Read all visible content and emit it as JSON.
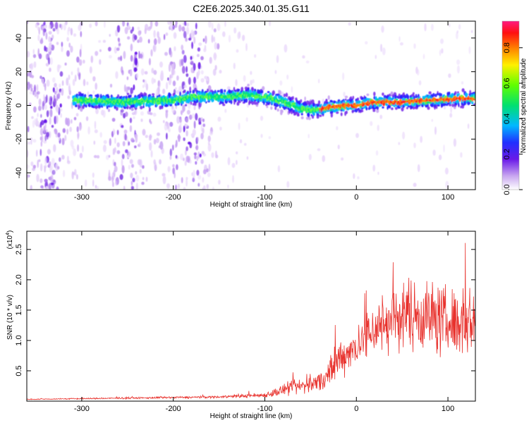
{
  "title": "C2E6.2025.340.01.35.G11",
  "chart_data": [
    {
      "type": "heatmap",
      "title": "C2E6.2025.340.01.35.G11",
      "xlabel": "Height of straight line (km)",
      "ylabel": "Frequency (Hz)",
      "xlim": [
        -360,
        130
      ],
      "ylim": [
        -50,
        50
      ],
      "xticks": [
        -300,
        -200,
        -100,
        0,
        100
      ],
      "yticks": [
        -40,
        -20,
        0,
        20,
        40
      ],
      "colorbar": {
        "label": "Normalized spectral amplitude",
        "range": [
          0.0,
          0.95
        ],
        "ticks": [
          "0.0",
          "0.2",
          "0.4",
          "0.6",
          "0.8"
        ],
        "tick_values": [
          0.0,
          0.2,
          0.4,
          0.6,
          0.8
        ]
      },
      "ridge": {
        "description": "dominant frequency band along height",
        "x": [
          -300,
          -260,
          -200,
          -180,
          -150,
          -120,
          -100,
          -80,
          -60,
          -45,
          -30,
          -10,
          0,
          20,
          50,
          80,
          110,
          130
        ],
        "y": [
          3,
          2,
          3,
          5,
          5,
          6,
          5,
          2,
          -2,
          -3,
          -1,
          0,
          0,
          2,
          2,
          3,
          4,
          4
        ]
      }
    },
    {
      "type": "line",
      "xlabel": "Height of straight line (km)",
      "ylabel": "SNR (10 * v/v)",
      "y_multiplier": "(x10",
      "y_multiplier_exp": "4",
      "y_multiplier_close": ")",
      "xlim": [
        -360,
        130
      ],
      "ylim": [
        0,
        2.8
      ],
      "xticks": [
        -300,
        -200,
        -100,
        0,
        100
      ],
      "yticks": [
        0.5,
        1.0,
        1.5,
        2.0,
        2.5
      ],
      "ytick_labels": [
        "0.5",
        "1.0",
        "1.5",
        "2.0",
        "2.5"
      ],
      "color": "#e8322d",
      "envelope": {
        "x": [
          -360,
          -250,
          -150,
          -100,
          -80,
          -60,
          -40,
          -25,
          -20,
          -10,
          0,
          10,
          20,
          40,
          60,
          80,
          100,
          130
        ],
        "mean": [
          0.03,
          0.05,
          0.07,
          0.1,
          0.18,
          0.25,
          0.32,
          0.5,
          0.7,
          0.8,
          0.9,
          1.05,
          1.2,
          1.35,
          1.45,
          1.4,
          1.3,
          1.3
        ],
        "amplitude": [
          0.01,
          0.02,
          0.03,
          0.06,
          0.15,
          0.2,
          0.25,
          0.45,
          0.5,
          0.45,
          0.45,
          0.6,
          0.7,
          0.8,
          0.85,
          0.9,
          0.85,
          0.8
        ]
      }
    }
  ]
}
